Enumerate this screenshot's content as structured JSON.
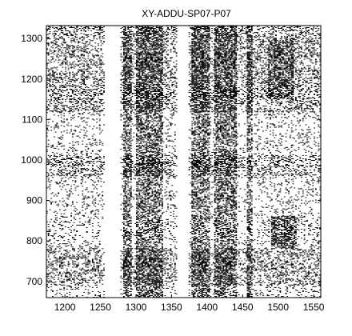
{
  "chart_data": {
    "type": "heatmap",
    "title": "XY-ADDU-SP07-P07",
    "xlabel": "",
    "ylabel": "",
    "xlim": [
      1174,
      1560
    ],
    "ylim": [
      660,
      1332
    ],
    "xticks": [
      1200,
      1250,
      1300,
      1350,
      1400,
      1450,
      1500,
      1550
    ],
    "yticks": [
      700,
      800,
      900,
      1000,
      1100,
      1200,
      1300
    ],
    "grid": false,
    "colors": {
      "on": "#000000",
      "off": "#ffffff"
    },
    "value_encoding": "binary recurrence plot: black = 1, white = 0",
    "dense_x_bands": [
      [
        1282,
        1292
      ],
      [
        1300,
        1336
      ],
      [
        1378,
        1402
      ],
      [
        1410,
        1440
      ],
      [
        1455,
        1462
      ]
    ],
    "sparse_x_bands": [
      [
        1174,
        1250
      ],
      [
        1340,
        1355
      ],
      [
        1470,
        1560
      ]
    ],
    "empty_x_gaps": [
      [
        1256,
        1277
      ],
      [
        1358,
        1372
      ]
    ],
    "dense_y_bands": [
      [
        1118,
        1330
      ],
      [
        960,
        1010
      ],
      [
        690,
        780
      ]
    ],
    "block_clusters": [
      {
        "x": [
          1490,
          1525
        ],
        "y": [
          780,
          860
        ]
      },
      {
        "x": [
          1485,
          1520
        ],
        "y": [
          1150,
          1300
        ]
      }
    ]
  }
}
